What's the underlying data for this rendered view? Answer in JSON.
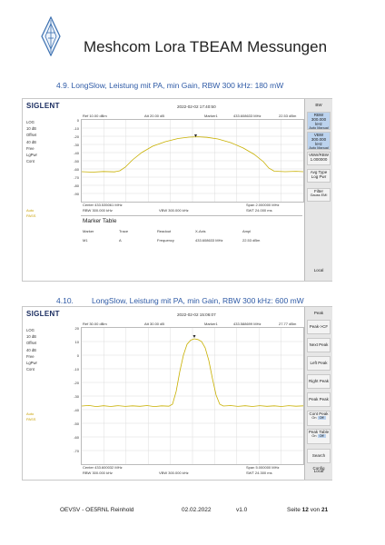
{
  "header": {
    "title": "Meshcom Lora TBEAM Messungen"
  },
  "section1": {
    "heading": "4.9. LongSlow, Leistung mit PA, min Gain, RBW 300 kHz: 180 mW",
    "screen": {
      "brand": "SIGLENT",
      "datetime": "2022-02-02 17:40:50",
      "ref": "Ref 10.00 dBm",
      "att": "Att 20.00 dB",
      "marker_label": "Marker1",
      "marker_freq": "433.608633 MHz",
      "marker_ampl": "22.53 dBm",
      "left": [
        "LOG",
        "10 dB",
        "Offset",
        "40 dB",
        "Free",
        "LgPwr",
        "Cont"
      ],
      "yticks": [
        "0",
        "-10",
        "-20",
        "-30",
        "-40",
        "-50",
        "-60",
        "-70",
        "-80",
        "-90"
      ],
      "bottom_left1": "Center 433.535061 MHz",
      "bottom_left2": "RBW 300.000 kHz",
      "bottom_mid": "VBW 300.000 kHz",
      "bottom_right1": "Span 2.000000 MHz",
      "bottom_right2": "SWT 24.000 ms",
      "side": [
        "BW",
        "RBW",
        "300.000 kHz",
        "Auto",
        "Manual",
        "VBW",
        "300.000 kHz",
        "Auto",
        "Manual",
        "VBW/RBW",
        "1.000000",
        "Avg Type",
        "Log Pwr",
        "Filter",
        "Gauss",
        "EMI",
        "Local"
      ],
      "extra_label1": "Auto",
      "extra_label2": "PASS",
      "marker_table_title": "Marker Table",
      "mt_headers": [
        "Marker",
        "Trace",
        "Readout",
        "X-Axis",
        "Ampl"
      ],
      "mt_row": [
        "M1",
        "A",
        "Frequency",
        "433.608633 MHz",
        "22.53 dBm"
      ]
    }
  },
  "section2": {
    "heading_num": "4.10.",
    "heading_text": "LongSlow, Leistung mit PA, min Gain, RBW 300 kHz: 600 mW",
    "screen": {
      "brand": "SIGLENT",
      "datetime": "2022-02-02 15:06:07",
      "ref": "Ref 30.00 dBm",
      "att": "Att 30.00 dB",
      "marker_label": "Marker1",
      "marker_freq": "433.588699 MHz",
      "marker_ampl": "27.77 dBm",
      "left": [
        "LOG",
        "10 dB",
        "Offset",
        "40 dB",
        "Free",
        "LgPwr",
        "Cont"
      ],
      "yticks": [
        "20",
        "10",
        "0",
        "-10",
        "-20",
        "-30",
        "-40",
        "-50",
        "-60",
        "-70"
      ],
      "bottom_left1": "Center 433.600032 MHz",
      "bottom_left2": "RBW 300.000 kHz",
      "bottom_mid": "VBW 300.000 kHz",
      "bottom_right1": "Span 5.000000 MHz",
      "bottom_right2": "SWT 24.300 ms",
      "side": [
        "Peak",
        "Peak->CF",
        "Next Peak",
        "Left Peak",
        "Right Peak",
        "Peak Peak",
        "Cont Peak",
        "On",
        "Off",
        "Peak Table",
        "On",
        "Off",
        "Search Config",
        "Local"
      ],
      "extra_label1": "Auto",
      "extra_label2": "PASS"
    }
  },
  "footer": {
    "left": "OEVSV - OE5RNL Reinhold",
    "date": "02.02.2022",
    "version": "v1.0",
    "page_prefix": "Seite",
    "page_num": "12",
    "page_mid": "von",
    "page_total": "21"
  },
  "colors": {
    "trace": "#c8b000",
    "link": "#2e5aa6",
    "logo": "#3a6fb0"
  }
}
